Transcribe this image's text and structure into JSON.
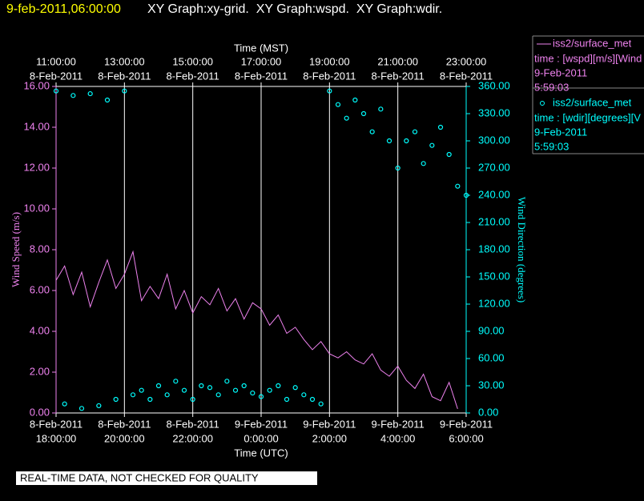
{
  "header": {
    "timestamp": "9-feb-2011,06:00:00",
    "graphs": "XY Graph:xy-grid.  XY Graph:wspd.  XY Graph:wdir."
  },
  "notice": "REAL-TIME DATA, NOT CHECKED FOR QUALITY",
  "chart_data": {
    "type": "line",
    "xlabel": "Time (UTC)",
    "x2label": "Time (MST)",
    "ylabel": "Wind Speed (m/s)",
    "y2label": "Wind Direction (degrees)",
    "grid": true,
    "xlim": [
      "2011-02-08T18:00:00",
      "2011-02-09T06:00:00"
    ],
    "xticks": [
      {
        "value": "2011-02-08T18:00:00",
        "label": [
          "8-Feb-2011",
          "18:00:00"
        ]
      },
      {
        "value": "2011-02-08T20:00:00",
        "label": [
          "8-Feb-2011",
          "20:00:00"
        ]
      },
      {
        "value": "2011-02-08T22:00:00",
        "label": [
          "8-Feb-2011",
          "22:00:00"
        ]
      },
      {
        "value": "2011-02-09T00:00:00",
        "label": [
          "9-Feb-2011",
          "0:00:00"
        ]
      },
      {
        "value": "2011-02-09T02:00:00",
        "label": [
          "9-Feb-2011",
          "2:00:00"
        ]
      },
      {
        "value": "2011-02-09T04:00:00",
        "label": [
          "9-Feb-2011",
          "4:00:00"
        ]
      },
      {
        "value": "2011-02-09T06:00:00",
        "label": [
          "9-Feb-2011",
          "6:00:00"
        ]
      }
    ],
    "x2lim": [
      "2011-02-08T11:00:00",
      "2011-02-08T23:00:00"
    ],
    "x2ticks": [
      {
        "value": "2011-02-08T11:00:00",
        "label": [
          "11:00:00",
          "8-Feb-2011"
        ]
      },
      {
        "value": "2011-02-08T13:00:00",
        "label": [
          "13:00:00",
          "8-Feb-2011"
        ]
      },
      {
        "value": "2011-02-08T15:00:00",
        "label": [
          "15:00:00",
          "8-Feb-2011"
        ]
      },
      {
        "value": "2011-02-08T17:00:00",
        "label": [
          "17:00:00",
          "8-Feb-2011"
        ]
      },
      {
        "value": "2011-02-08T19:00:00",
        "label": [
          "19:00:00",
          "8-Feb-2011"
        ]
      },
      {
        "value": "2011-02-08T21:00:00",
        "label": [
          "21:00:00",
          "8-Feb-2011"
        ]
      },
      {
        "value": "2011-02-08T23:00:00",
        "label": [
          "23:00:00",
          "8-Feb-2011"
        ]
      }
    ],
    "ylim": [
      0,
      16
    ],
    "yticks": [
      {
        "value": 0,
        "label": "0.00"
      },
      {
        "value": 2,
        "label": "2.00"
      },
      {
        "value": 4,
        "label": "4.00"
      },
      {
        "value": 6,
        "label": "6.00"
      },
      {
        "value": 8,
        "label": "8.00"
      },
      {
        "value": 10,
        "label": "10.00"
      },
      {
        "value": 12,
        "label": "12.00"
      },
      {
        "value": 14,
        "label": "14.00"
      },
      {
        "value": 16,
        "label": "16.00"
      }
    ],
    "y2lim": [
      0,
      360
    ],
    "y2ticks": [
      {
        "value": 0,
        "label": "0.00"
      },
      {
        "value": 30,
        "label": "30.00"
      },
      {
        "value": 60,
        "label": "60.00"
      },
      {
        "value": 90,
        "label": "90.00"
      },
      {
        "value": 120,
        "label": "120.00"
      },
      {
        "value": 150,
        "label": "150.00"
      },
      {
        "value": 180,
        "label": "180.00"
      },
      {
        "value": 210,
        "label": "210.00"
      },
      {
        "value": 240,
        "label": "240.00"
      },
      {
        "value": 270,
        "label": "270.00"
      },
      {
        "value": 300,
        "label": "300.00"
      },
      {
        "value": 330,
        "label": "330.00"
      },
      {
        "value": 360,
        "label": "360.00"
      }
    ],
    "x": [
      "2011-02-08T18:00:00",
      "2011-02-08T18:15:00",
      "2011-02-08T18:30:00",
      "2011-02-08T18:45:00",
      "2011-02-08T19:00:00",
      "2011-02-08T19:15:00",
      "2011-02-08T19:30:00",
      "2011-02-08T19:45:00",
      "2011-02-08T20:00:00",
      "2011-02-08T20:15:00",
      "2011-02-08T20:30:00",
      "2011-02-08T20:45:00",
      "2011-02-08T21:00:00",
      "2011-02-08T21:15:00",
      "2011-02-08T21:30:00",
      "2011-02-08T21:45:00",
      "2011-02-08T22:00:00",
      "2011-02-08T22:15:00",
      "2011-02-08T22:30:00",
      "2011-02-08T22:45:00",
      "2011-02-08T23:00:00",
      "2011-02-08T23:15:00",
      "2011-02-08T23:30:00",
      "2011-02-08T23:45:00",
      "2011-02-09T00:00:00",
      "2011-02-09T00:15:00",
      "2011-02-09T00:30:00",
      "2011-02-09T00:45:00",
      "2011-02-09T01:00:00",
      "2011-02-09T01:15:00",
      "2011-02-09T01:30:00",
      "2011-02-09T01:45:00",
      "2011-02-09T02:00:00",
      "2011-02-09T02:15:00",
      "2011-02-09T02:30:00",
      "2011-02-09T02:45:00",
      "2011-02-09T03:00:00",
      "2011-02-09T03:15:00",
      "2011-02-09T03:30:00",
      "2011-02-09T03:45:00",
      "2011-02-09T04:00:00",
      "2011-02-09T04:15:00",
      "2011-02-09T04:30:00",
      "2011-02-09T04:45:00",
      "2011-02-09T05:00:00",
      "2011-02-09T05:15:00",
      "2011-02-09T05:30:00",
      "2011-02-09T05:45:00",
      "2011-02-09T06:00:00"
    ],
    "series": [
      {
        "name": "iss2/surface_met",
        "label": "time : [wspd][m/s][Wind",
        "date": "9-Feb-2011",
        "time": "5:59:03",
        "color": "#ee82ee",
        "style": "line",
        "values": [
          6.5,
          7.2,
          5.8,
          6.9,
          5.2,
          6.4,
          7.5,
          6.1,
          6.8,
          7.9,
          5.5,
          6.2,
          5.6,
          6.8,
          5.1,
          6.0,
          4.9,
          5.7,
          5.3,
          6.1,
          5.0,
          5.6,
          4.6,
          5.4,
          5.1,
          4.3,
          4.8,
          3.9,
          4.2,
          3.6,
          3.1,
          3.5,
          2.9,
          2.7,
          3.0,
          2.6,
          2.4,
          2.9,
          2.1,
          1.8,
          2.3,
          1.6,
          1.2,
          1.9,
          0.8,
          0.6,
          1.5,
          0.2,
          null
        ]
      },
      {
        "name": "iss2/surface_met",
        "label": "time : [wdir][degrees][V",
        "date": "9-Feb-2011",
        "time": "5:59:03",
        "color": "#00ffff",
        "style": "scatter",
        "axis": "y2",
        "values": [
          355,
          10,
          350,
          5,
          352,
          8,
          345,
          15,
          355,
          20,
          25,
          15,
          30,
          20,
          35,
          25,
          15,
          30,
          28,
          20,
          35,
          25,
          30,
          22,
          18,
          25,
          30,
          15,
          28,
          20,
          15,
          10,
          355,
          340,
          325,
          345,
          330,
          310,
          335,
          300,
          270,
          300,
          310,
          275,
          295,
          315,
          285,
          250,
          240
        ]
      }
    ]
  }
}
